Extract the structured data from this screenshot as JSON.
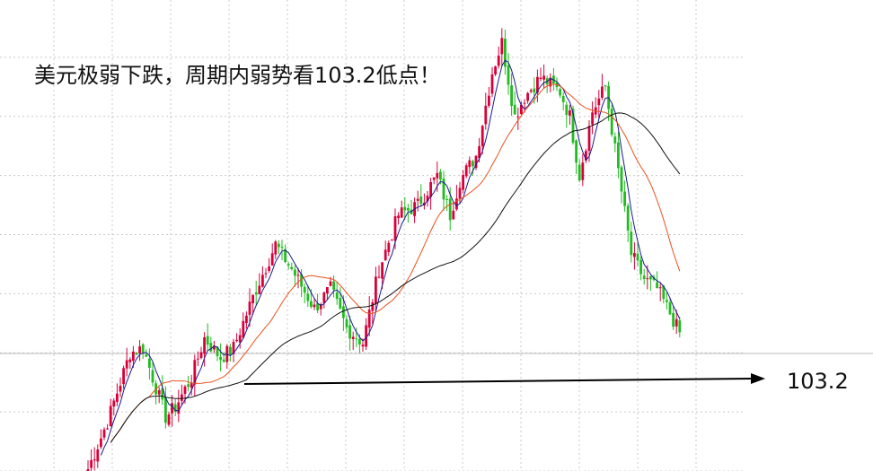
{
  "chart_data": {
    "type": "candlestick",
    "title": "美元极弱下跌，周期内弱势看103.2低点！",
    "target_label": "103.2",
    "target_value": 103.2,
    "colors": {
      "up": "#d9003a",
      "down": "#22bb22",
      "ma_short": "#1a1a8c",
      "ma_mid": "#e8521c",
      "ma_long": "#111111",
      "grid": "#c8c8c8",
      "arrow": "#000000"
    },
    "y_range": [
      102.9,
      107.5
    ],
    "grid_levels": [
      107.1,
      106.5,
      105.9,
      105.3,
      104.7,
      104.1,
      103.5,
      102.9
    ],
    "price_anchors": [
      [
        0,
        102.92
      ],
      [
        6,
        103.4
      ],
      [
        13,
        104.1
      ],
      [
        17,
        104.15
      ],
      [
        24,
        103.45
      ],
      [
        27,
        103.55
      ],
      [
        32,
        103.85
      ],
      [
        36,
        104.25
      ],
      [
        41,
        104.05
      ],
      [
        45,
        104.15
      ],
      [
        52,
        104.75
      ],
      [
        58,
        105.2
      ],
      [
        63,
        104.95
      ],
      [
        70,
        104.55
      ],
      [
        75,
        104.75
      ],
      [
        80,
        104.35
      ],
      [
        85,
        104.2
      ],
      [
        90,
        104.95
      ],
      [
        96,
        105.5
      ],
      [
        102,
        105.6
      ],
      [
        108,
        105.9
      ],
      [
        112,
        105.5
      ],
      [
        115,
        105.85
      ],
      [
        120,
        106.1
      ],
      [
        125,
        106.95
      ],
      [
        128,
        107.25
      ],
      [
        132,
        106.5
      ],
      [
        135,
        106.7
      ],
      [
        140,
        106.9
      ],
      [
        146,
        106.75
      ],
      [
        149,
        106.5
      ],
      [
        152,
        105.9
      ],
      [
        156,
        106.55
      ],
      [
        160,
        106.8
      ],
      [
        164,
        105.95
      ],
      [
        168,
        105.1
      ],
      [
        172,
        104.85
      ],
      [
        176,
        104.75
      ],
      [
        180,
        104.5
      ],
      [
        183,
        104.3
      ]
    ]
  }
}
